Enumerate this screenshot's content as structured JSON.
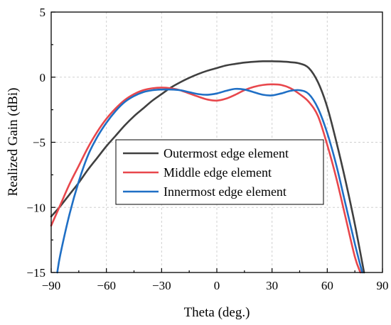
{
  "chart_data": {
    "type": "line",
    "xlabel": "Theta (deg.)",
    "ylabel": "Realized Gain (dBi)",
    "xlim": [
      -90,
      90
    ],
    "ylim": [
      -15,
      5
    ],
    "xticks": [
      -90,
      -60,
      -30,
      0,
      30,
      60,
      90
    ],
    "yticks": [
      5,
      0,
      -5,
      -10,
      -15
    ],
    "xtick_labels": [
      "−90",
      "−60",
      "−30",
      "0",
      "30",
      "60",
      "90"
    ],
    "ytick_labels": [
      "5",
      "0",
      "−5",
      "−10",
      "−15"
    ],
    "grid": true,
    "legend_position": "center-left",
    "series": [
      {
        "name": "Outermost edge element",
        "color": "#404040",
        "x": [
          -90,
          -85,
          -80,
          -75,
          -70,
          -65,
          -60,
          -55,
          -50,
          -45,
          -40,
          -35,
          -30,
          -25,
          -20,
          -15,
          -10,
          -5,
          0,
          5,
          10,
          15,
          20,
          25,
          30,
          35,
          40,
          45,
          50,
          55,
          60,
          65,
          70,
          75,
          80
        ],
        "y": [
          -10.7,
          -9.9,
          -9.0,
          -8.1,
          -7.1,
          -6.2,
          -5.3,
          -4.5,
          -3.7,
          -3.0,
          -2.4,
          -1.8,
          -1.3,
          -0.8,
          -0.4,
          -0.05,
          0.25,
          0.5,
          0.7,
          0.9,
          1.02,
          1.12,
          1.18,
          1.22,
          1.22,
          1.2,
          1.15,
          1.05,
          0.7,
          -0.4,
          -2.3,
          -5.0,
          -8.0,
          -11.3,
          -15.0
        ]
      },
      {
        "name": "Middle edge element",
        "color": "#e8474c",
        "x": [
          -90,
          -85,
          -80,
          -75,
          -70,
          -65,
          -60,
          -55,
          -50,
          -45,
          -40,
          -35,
          -30,
          -25,
          -20,
          -15,
          -10,
          -5,
          0,
          5,
          10,
          15,
          20,
          25,
          30,
          35,
          40,
          45,
          50,
          55,
          60,
          65,
          70,
          75,
          78
        ],
        "y": [
          -11.4,
          -9.8,
          -8.2,
          -6.8,
          -5.4,
          -4.2,
          -3.2,
          -2.4,
          -1.75,
          -1.3,
          -1.0,
          -0.85,
          -0.8,
          -0.85,
          -1.0,
          -1.25,
          -1.5,
          -1.72,
          -1.8,
          -1.65,
          -1.35,
          -1.0,
          -0.75,
          -0.6,
          -0.55,
          -0.6,
          -0.85,
          -1.3,
          -1.9,
          -3.0,
          -5.2,
          -7.8,
          -10.8,
          -13.8,
          -15.0
        ]
      },
      {
        "name": "Innermost edge element",
        "color": "#1f6fc5",
        "x": [
          -86.7,
          -85,
          -80,
          -75,
          -70,
          -65,
          -60,
          -55,
          -50,
          -45,
          -40,
          -35,
          -30,
          -25,
          -20,
          -15,
          -10,
          -5,
          0,
          5,
          10,
          15,
          20,
          25,
          30,
          35,
          40,
          45,
          50,
          55,
          60,
          65,
          70,
          75,
          79
        ],
        "y": [
          -15.0,
          -13.6,
          -10.5,
          -8.0,
          -6.0,
          -4.6,
          -3.5,
          -2.6,
          -1.9,
          -1.45,
          -1.15,
          -1.0,
          -0.95,
          -0.95,
          -1.0,
          -1.15,
          -1.3,
          -1.35,
          -1.25,
          -1.05,
          -0.9,
          -0.95,
          -1.15,
          -1.35,
          -1.4,
          -1.25,
          -1.05,
          -1.0,
          -1.3,
          -2.4,
          -4.3,
          -6.8,
          -9.8,
          -12.8,
          -15.0
        ]
      }
    ]
  }
}
